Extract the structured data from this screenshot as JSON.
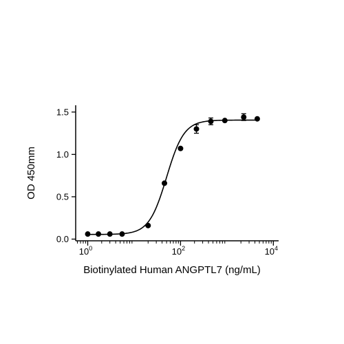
{
  "chart_data": {
    "type": "scatter",
    "xlabel": "Biotinylated Human ANGPTL7 (ng/mL)",
    "ylabel": "OD 450mm",
    "x_scale": "log10",
    "xlim": [
      0.55,
      13000
    ],
    "ylim": [
      -0.02,
      1.58
    ],
    "x_ticks": [
      {
        "value": 1,
        "base": "10",
        "exp": "0"
      },
      {
        "value": 100,
        "base": "10",
        "exp": "2"
      },
      {
        "value": 10000,
        "base": "10",
        "exp": "4"
      }
    ],
    "y_ticks": [
      {
        "value": 0.0,
        "label": "0.0"
      },
      {
        "value": 0.5,
        "label": "0.5"
      },
      {
        "value": 1.0,
        "label": "1.0"
      },
      {
        "value": 1.5,
        "label": "1.5"
      }
    ],
    "grid": false,
    "legend": "none",
    "series": [
      {
        "points": [
          {
            "x": 1.0,
            "y": 0.06,
            "err": 0.0
          },
          {
            "x": 1.7,
            "y": 0.06,
            "err": 0.0
          },
          {
            "x": 3.0,
            "y": 0.06,
            "err": 0.0
          },
          {
            "x": 5.5,
            "y": 0.06,
            "err": 0.0
          },
          {
            "x": 20,
            "y": 0.16,
            "err": 0.0
          },
          {
            "x": 45,
            "y": 0.66,
            "err": 0.0
          },
          {
            "x": 100,
            "y": 1.07,
            "err": 0.0
          },
          {
            "x": 220,
            "y": 1.3,
            "err": 0.05
          },
          {
            "x": 450,
            "y": 1.39,
            "err": 0.04
          },
          {
            "x": 900,
            "y": 1.4,
            "err": 0.0
          },
          {
            "x": 2300,
            "y": 1.44,
            "err": 0.04
          },
          {
            "x": 4500,
            "y": 1.42,
            "err": 0.0
          }
        ],
        "fit": {
          "model": "4PL",
          "bottom": 0.055,
          "top": 1.405,
          "ec50": 50,
          "hill": 2.3
        }
      }
    ]
  }
}
